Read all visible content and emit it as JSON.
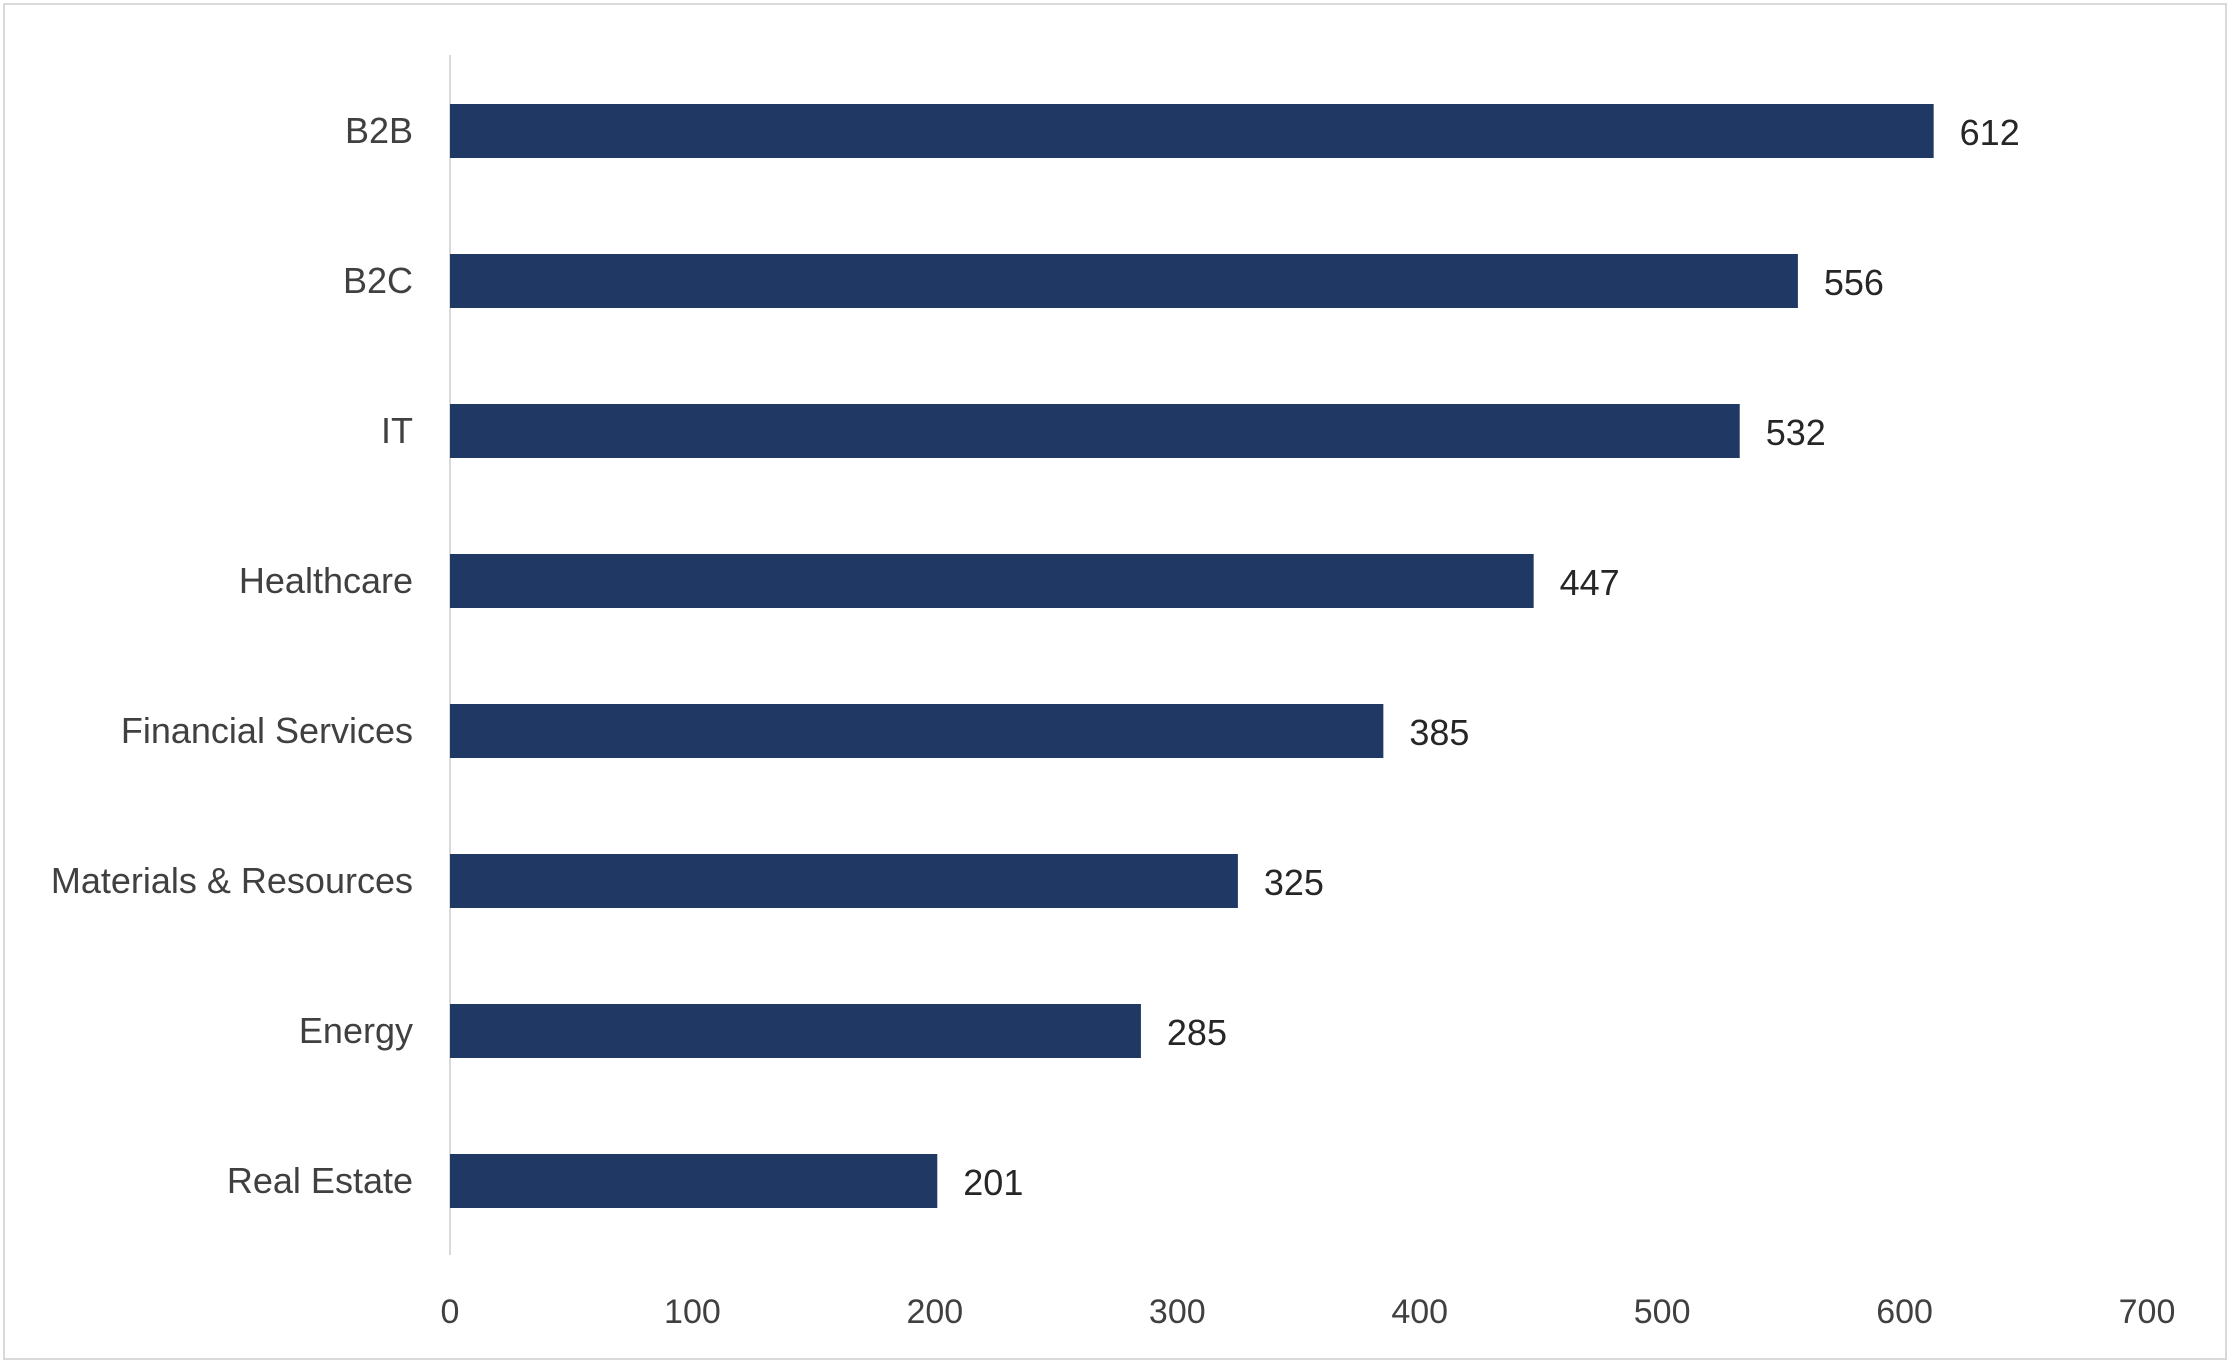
{
  "chart_data": {
    "type": "bar",
    "orientation": "horizontal",
    "categories": [
      "B2B",
      "B2C",
      "IT",
      "Healthcare",
      "Financial Services",
      "Materials & Resources",
      "Energy",
      "Real Estate"
    ],
    "values": [
      612,
      556,
      532,
      447,
      385,
      325,
      285,
      201
    ],
    "title": "",
    "xlabel": "",
    "ylabel": "",
    "xlim": [
      0,
      700
    ],
    "xticks": [
      0,
      100,
      200,
      300,
      400,
      500,
      600,
      700
    ],
    "grid": false,
    "data_labels": true,
    "legend": "none",
    "colors": {
      "bar": "#203864",
      "axis": "#d9d9d9",
      "frame": "#d9d9d9"
    }
  }
}
